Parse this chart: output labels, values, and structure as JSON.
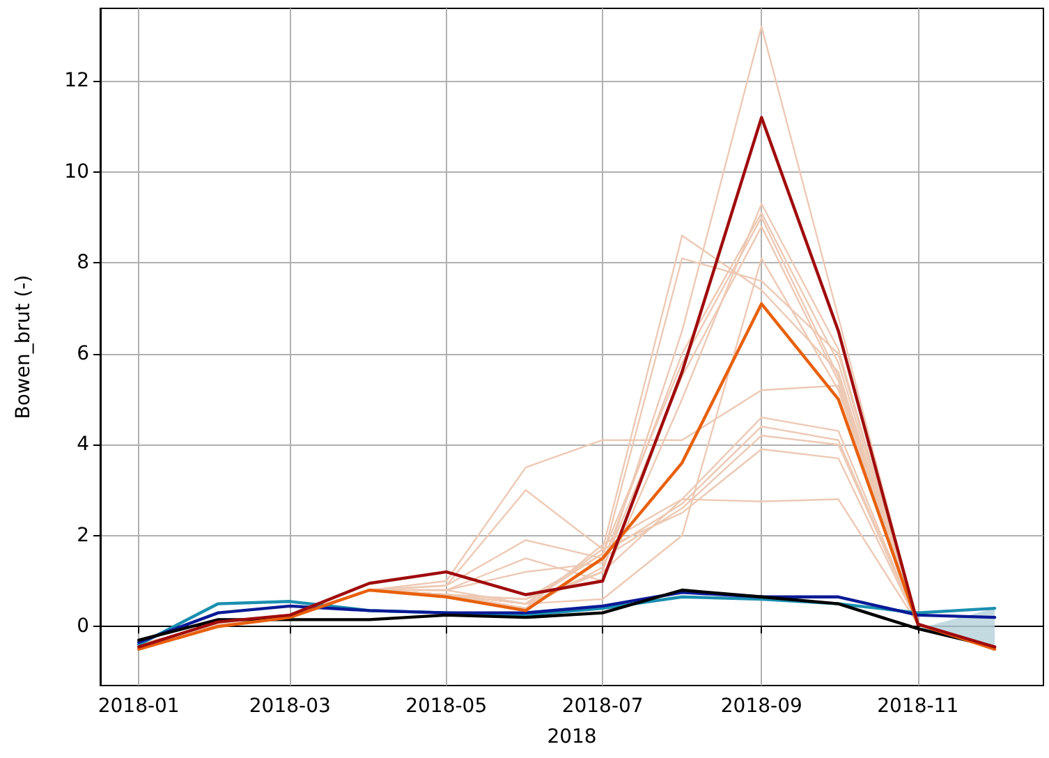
{
  "chart_data": {
    "type": "line",
    "xlabel": "2018",
    "ylabel": "Bowen_brut (-)",
    "x": [
      "2018-01",
      "2018-02",
      "2018-03",
      "2018-04",
      "2018-05",
      "2018-06",
      "2018-07",
      "2018-08",
      "2018-09",
      "2018-10",
      "2018-11",
      "2018-12"
    ],
    "xlim": [
      "2017-12-17",
      "2018-12-20"
    ],
    "xticks": [
      "2018-01",
      "2018-03",
      "2018-05",
      "2018-07",
      "2018-09",
      "2018-11"
    ],
    "ylim": [
      -1.3,
      13.6
    ],
    "yticks": [
      0,
      2,
      4,
      6,
      8,
      10,
      12
    ],
    "grid": true,
    "marker": "none",
    "line_style": "solid",
    "series": [
      {
        "color": "#edc9b4",
        "values": [
          -0.4,
          0.05,
          0.25,
          0.8,
          0.8,
          0.5,
          1.2,
          6.5,
          13.2,
          6.8,
          0.05,
          -0.45
        ]
      },
      {
        "color": "#edc9b4",
        "values": [
          -0.4,
          0.05,
          0.25,
          0.8,
          1.0,
          3.5,
          4.1,
          4.1,
          5.2,
          5.3,
          0.05,
          -0.45
        ]
      },
      {
        "color": "#edc9b4",
        "values": [
          -0.4,
          0.05,
          0.25,
          0.8,
          0.9,
          3.0,
          1.7,
          8.6,
          7.4,
          5.6,
          0.05,
          -0.45
        ]
      },
      {
        "color": "#edc9b4",
        "values": [
          -0.4,
          0.05,
          0.25,
          0.8,
          0.9,
          1.9,
          1.5,
          8.1,
          7.6,
          6.0,
          0.05,
          -0.45
        ]
      },
      {
        "color": "#edc9b4",
        "values": [
          -0.4,
          0.05,
          0.25,
          0.8,
          0.8,
          1.5,
          1.0,
          5.0,
          9.3,
          6.1,
          0.05,
          -0.45
        ]
      },
      {
        "color": "#edc9b4",
        "values": [
          -0.4,
          0.05,
          0.25,
          0.8,
          0.8,
          1.2,
          1.4,
          6.0,
          9.1,
          5.8,
          0.05,
          -0.45
        ]
      },
      {
        "color": "#edc9b4",
        "values": [
          -0.4,
          0.05,
          0.25,
          0.8,
          0.7,
          0.6,
          1.6,
          5.8,
          9.0,
          5.5,
          0.05,
          -0.45
        ]
      },
      {
        "color": "#edc9b4",
        "values": [
          -0.4,
          0.05,
          0.25,
          0.8,
          0.7,
          0.4,
          1.3,
          5.5,
          8.8,
          5.4,
          0.05,
          -0.45
        ]
      },
      {
        "color": "#edc9b4",
        "values": [
          -0.4,
          0.05,
          0.25,
          0.8,
          0.7,
          0.5,
          0.6,
          2.0,
          8.1,
          5.2,
          0.05,
          -0.45
        ]
      },
      {
        "color": "#edc9b4",
        "values": [
          -0.4,
          0.05,
          0.25,
          0.8,
          0.7,
          0.4,
          1.8,
          2.8,
          4.6,
          4.3,
          0.05,
          -0.45
        ]
      },
      {
        "color": "#edc9b4",
        "values": [
          -0.4,
          0.05,
          0.25,
          0.8,
          0.7,
          0.5,
          1.6,
          2.7,
          4.4,
          4.1,
          0.05,
          -0.45
        ]
      },
      {
        "color": "#edc9b4",
        "values": [
          -0.4,
          0.05,
          0.25,
          0.8,
          0.7,
          0.4,
          1.5,
          2.6,
          4.2,
          4.0,
          0.05,
          -0.45
        ]
      },
      {
        "color": "#edc9b4",
        "values": [
          -0.4,
          0.05,
          0.25,
          0.8,
          0.7,
          0.5,
          1.7,
          2.5,
          3.9,
          3.7,
          0.05,
          -0.45
        ]
      },
      {
        "color": "#edc9b4",
        "values": [
          -0.4,
          0.05,
          0.25,
          0.8,
          0.7,
          0.6,
          1.2,
          2.8,
          2.75,
          2.8,
          0.05,
          -0.45
        ]
      },
      {
        "color": "#1a8fb0",
        "values": [
          -0.4,
          0.5,
          0.55,
          0.35,
          0.3,
          0.25,
          0.4,
          0.65,
          0.6,
          0.5,
          0.3,
          0.4
        ]
      },
      {
        "color": "#0a1a96",
        "values": [
          -0.35,
          0.3,
          0.45,
          0.35,
          0.3,
          0.3,
          0.45,
          0.75,
          0.65,
          0.65,
          0.25,
          0.2
        ]
      },
      {
        "color": "#000000",
        "values": [
          -0.3,
          0.15,
          0.15,
          0.15,
          0.25,
          0.2,
          0.3,
          0.8,
          0.65,
          0.5,
          -0.05,
          -0.45
        ],
        "lower": [
          null,
          null,
          null,
          null,
          null,
          null,
          null,
          null,
          null,
          null,
          -0.05,
          -0.45
        ],
        "upper": [
          null,
          null,
          null,
          null,
          null,
          null,
          null,
          null,
          null,
          null,
          -0.05,
          0.4
        ]
      },
      {
        "color": "#e8600c",
        "values": [
          -0.5,
          0.0,
          0.2,
          0.8,
          0.65,
          0.35,
          1.5,
          3.6,
          7.1,
          5.0,
          0.05,
          -0.5
        ]
      },
      {
        "color": "#a00c0c",
        "values": [
          -0.45,
          0.1,
          0.25,
          0.95,
          1.2,
          0.7,
          1.0,
          5.6,
          11.2,
          6.5,
          0.05,
          -0.45
        ]
      }
    ]
  }
}
